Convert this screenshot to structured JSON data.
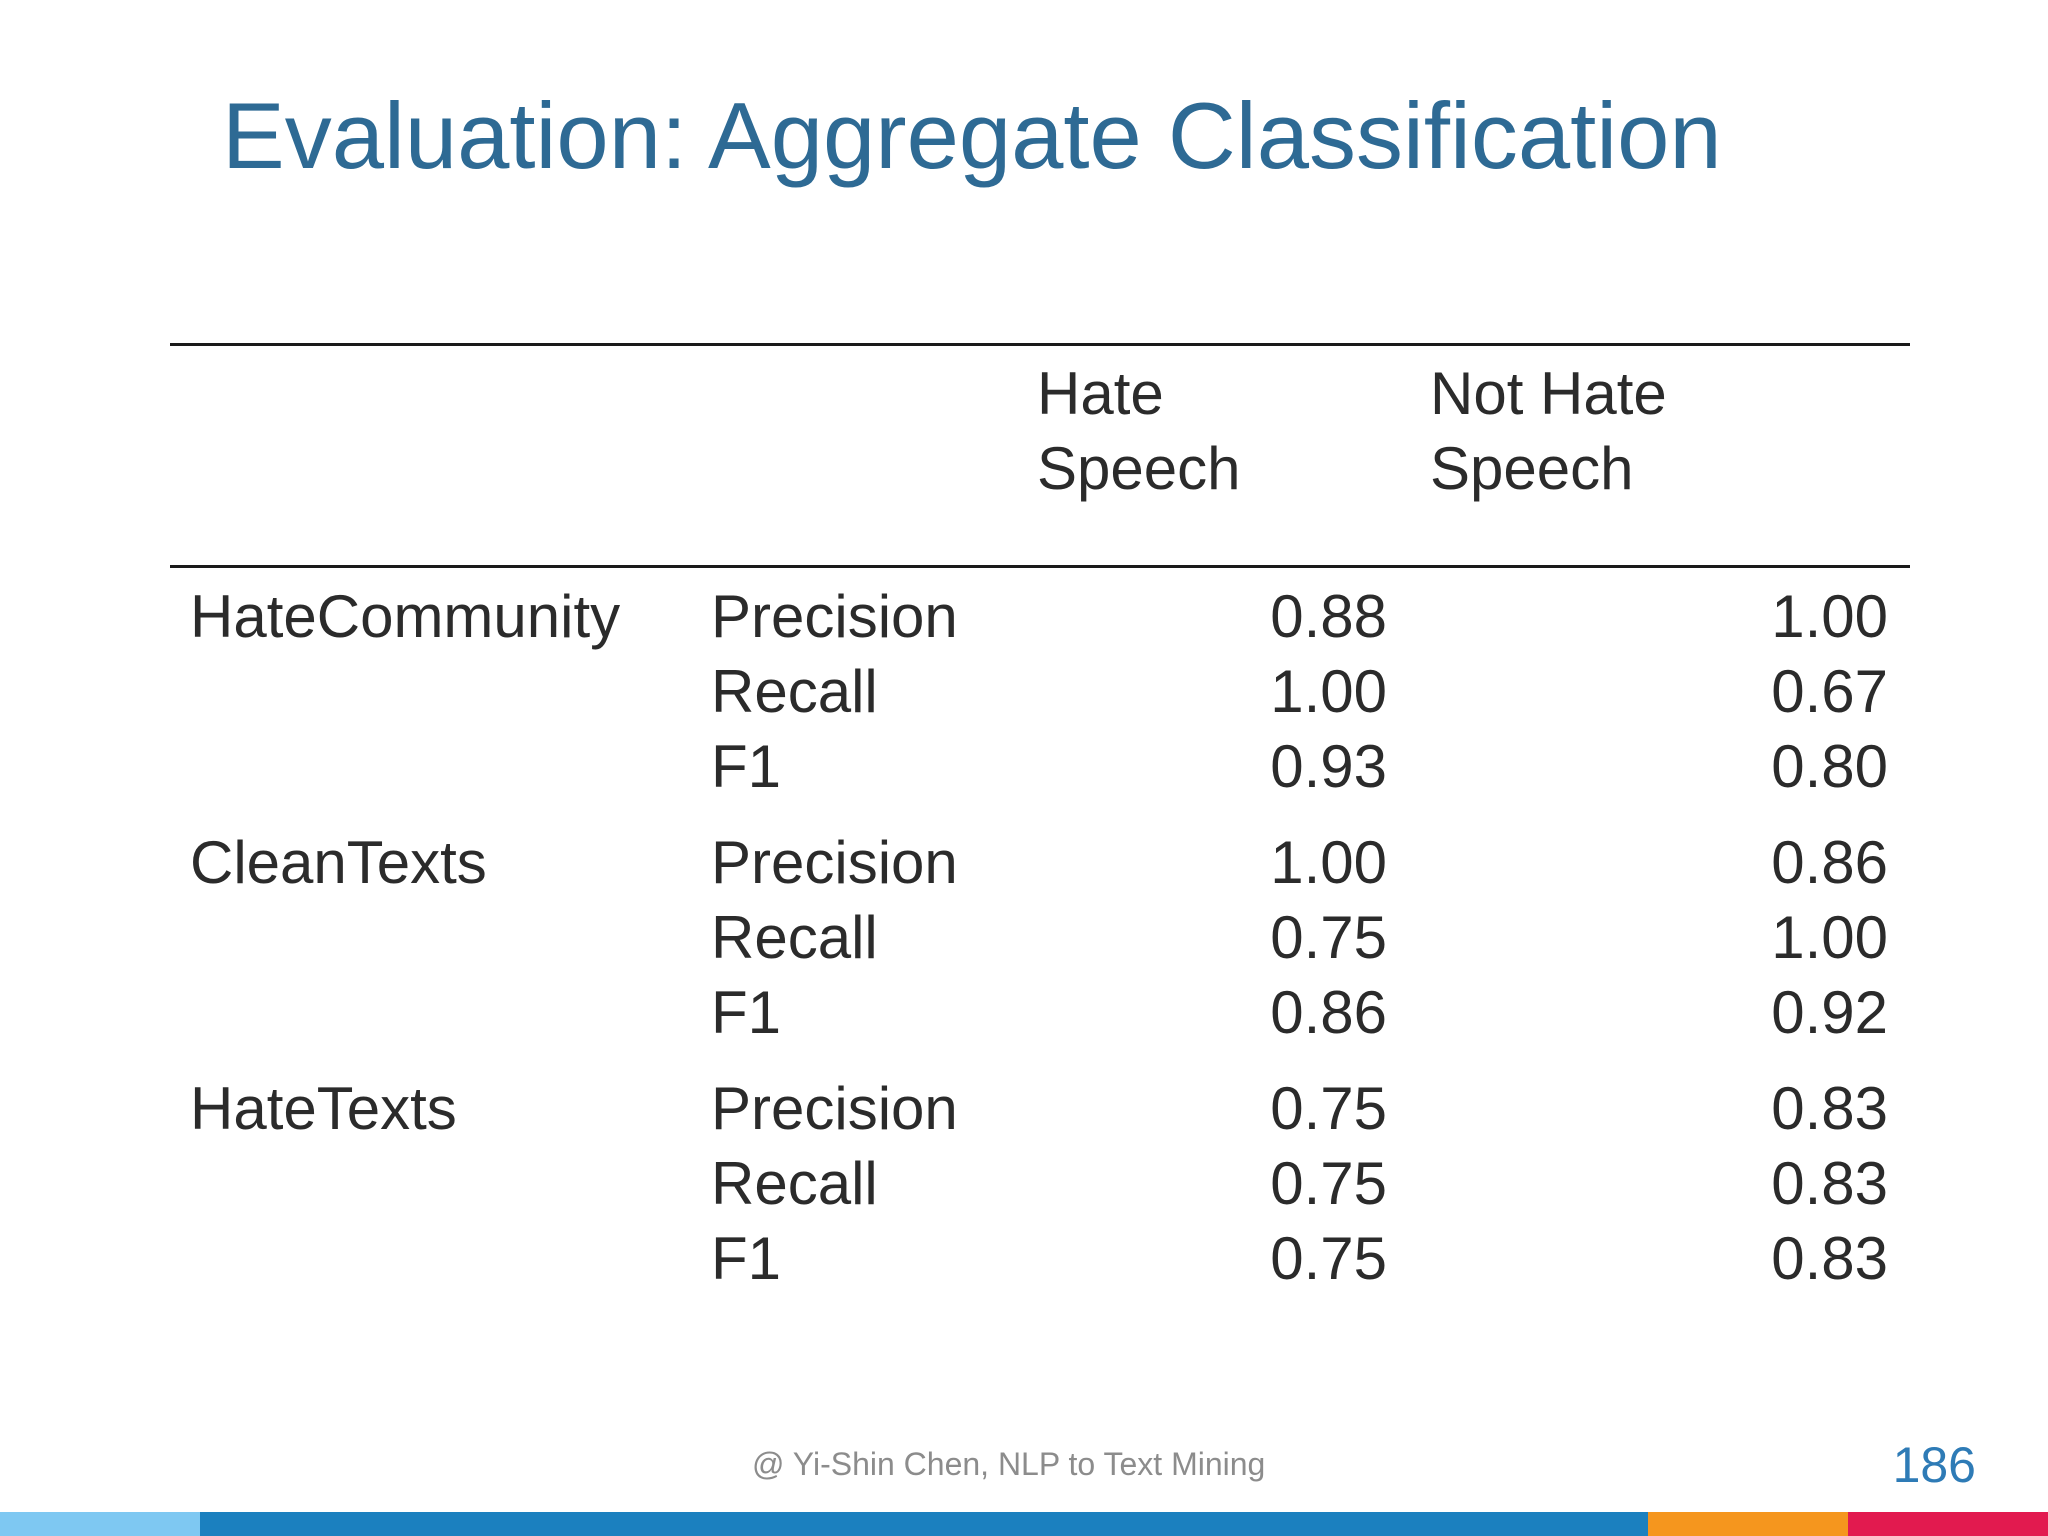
{
  "slide": {
    "title": "Evaluation: Aggregate Classification",
    "footer": "@ Yi-Shin Chen, NLP to Text Mining",
    "page_number": "186"
  },
  "table": {
    "columns": [
      {
        "line1": "Hate",
        "line2": "Speech"
      },
      {
        "line1": "Not Hate",
        "line2": "Speech"
      }
    ],
    "groups": [
      {
        "label": "HateCommunity",
        "rows": [
          {
            "metric": "Precision",
            "hate": "0.88",
            "not_hate": "1.00"
          },
          {
            "metric": "Recall",
            "hate": "1.00",
            "not_hate": "0.67"
          },
          {
            "metric": "F1",
            "hate": "0.93",
            "not_hate": "0.80"
          }
        ]
      },
      {
        "label": "CleanTexts",
        "rows": [
          {
            "metric": "Precision",
            "hate": "1.00",
            "not_hate": "0.86"
          },
          {
            "metric": "Recall",
            "hate": "0.75",
            "not_hate": "1.00"
          },
          {
            "metric": "F1",
            "hate": "0.86",
            "not_hate": "0.92"
          }
        ]
      },
      {
        "label": "HateTexts",
        "rows": [
          {
            "metric": "Precision",
            "hate": "0.75",
            "not_hate": "0.83"
          },
          {
            "metric": "Recall",
            "hate": "0.75",
            "not_hate": "0.83"
          },
          {
            "metric": "F1",
            "hate": "0.75",
            "not_hate": "0.83"
          }
        ]
      }
    ]
  },
  "colors": {
    "title": "#2e6a94",
    "page_number": "#2e7bb6",
    "bar_segments": [
      "#7ec8f2",
      "#1b80bf",
      "#f5961e",
      "#e21a4f"
    ]
  }
}
